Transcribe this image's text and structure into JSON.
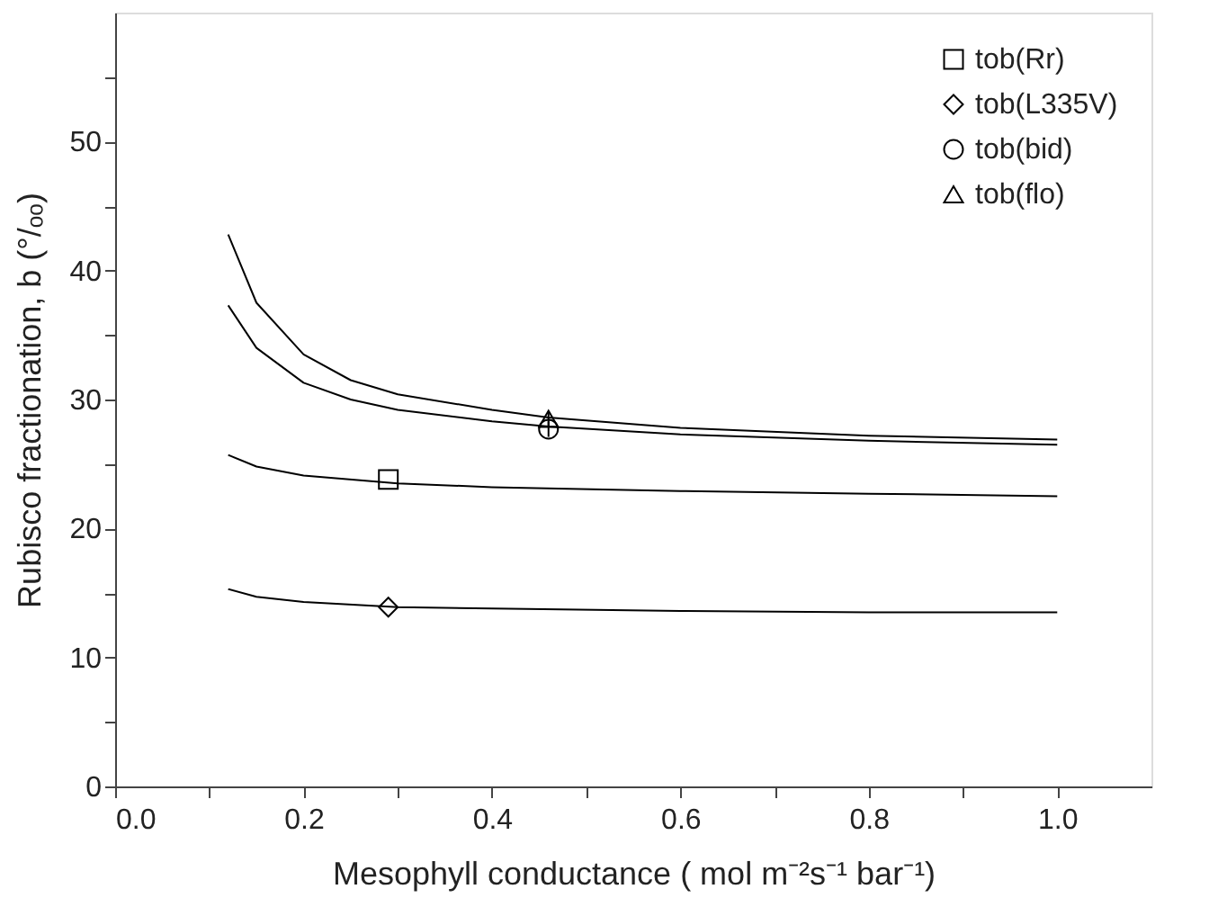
{
  "chart_data": {
    "type": "line",
    "xlabel": "Mesophyll conductance ( mol m⁻²s⁻¹ bar⁻¹)",
    "ylabel": "Rubisco fractionation, b (°/ₒₒ)",
    "xlim": [
      0,
      1.1
    ],
    "ylim": [
      0,
      60
    ],
    "xticks": [
      {
        "value": 0,
        "label": "0.0"
      },
      {
        "value": 0.1,
        "label": null
      },
      {
        "value": 0.2,
        "label": "0.2"
      },
      {
        "value": 0.3,
        "label": null
      },
      {
        "value": 0.4,
        "label": "0.4"
      },
      {
        "value": 0.5,
        "label": null
      },
      {
        "value": 0.6,
        "label": "0.6"
      },
      {
        "value": 0.7,
        "label": null
      },
      {
        "value": 0.8,
        "label": "0.8"
      },
      {
        "value": 0.9,
        "label": null
      },
      {
        "value": 1.0,
        "label": "1.0"
      }
    ],
    "yticks": [
      0,
      {
        "value": 5,
        "label": null
      },
      10,
      {
        "value": 15,
        "label": null
      },
      20,
      {
        "value": 25,
        "label": null
      },
      30,
      {
        "value": 35,
        "label": null
      },
      40,
      {
        "value": 45,
        "label": null
      },
      50,
      {
        "value": 55,
        "label": null
      }
    ],
    "grid": false,
    "legend": "top right",
    "series": [
      {
        "type": "line",
        "color": "#000000",
        "x": [
          0.12,
          0.15,
          0.2,
          0.25,
          0.3,
          0.4,
          0.46,
          0.6,
          0.8,
          1.0
        ],
        "values": [
          42.8,
          37.5,
          33.5,
          31.5,
          30.4,
          29.2,
          28.6,
          27.8,
          27.2,
          26.9
        ]
      },
      {
        "type": "line",
        "color": "#000000",
        "x": [
          0.12,
          0.15,
          0.2,
          0.25,
          0.3,
          0.4,
          0.46,
          0.6,
          0.8,
          1.0
        ],
        "values": [
          37.3,
          34.0,
          31.3,
          30.0,
          29.2,
          28.3,
          27.9,
          27.3,
          26.8,
          26.5
        ]
      },
      {
        "type": "line",
        "color": "#000000",
        "x": [
          0.12,
          0.15,
          0.2,
          0.3,
          0.4,
          0.6,
          0.8,
          1.0
        ],
        "values": [
          25.7,
          24.8,
          24.1,
          23.5,
          23.2,
          22.9,
          22.7,
          22.5
        ]
      },
      {
        "type": "line",
        "color": "#000000",
        "x": [
          0.12,
          0.15,
          0.2,
          0.3,
          0.4,
          0.6,
          0.8,
          1.0
        ],
        "values": [
          15.3,
          14.7,
          14.3,
          13.9,
          13.8,
          13.6,
          13.5,
          13.5
        ]
      },
      {
        "type": "scatter",
        "name": "tob(Rr)",
        "marker": "square",
        "color": "#000000",
        "x": [
          0.29
        ],
        "values": [
          23.8
        ]
      },
      {
        "type": "scatter",
        "name": "tob(L335V)",
        "marker": "diamond",
        "color": "#000000",
        "x": [
          0.29
        ],
        "values": [
          13.9
        ]
      },
      {
        "type": "scatter",
        "name": "tob(bid)",
        "marker": "circle",
        "color": "#000000",
        "x": [
          0.46
        ],
        "values": [
          27.7
        ],
        "errors": [
          0.6
        ]
      },
      {
        "type": "scatter",
        "name": "tob(flo)",
        "marker": "triangle",
        "color": "#000000",
        "x": [
          0.46
        ],
        "values": [
          28.5
        ],
        "errors": [
          0.6
        ]
      }
    ]
  }
}
